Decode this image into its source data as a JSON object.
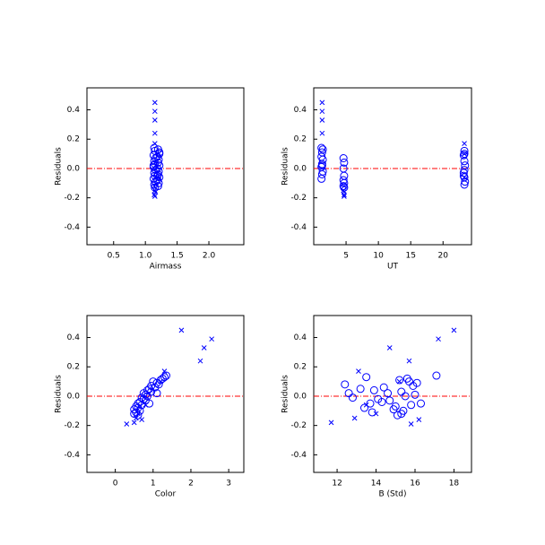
{
  "chart_data": [
    {
      "type": "scatter",
      "xlabel": "Airmass",
      "ylabel": "Residuals",
      "xlim": [
        0.08,
        2.55
      ],
      "ylim": [
        -0.52,
        0.55
      ],
      "xticks": [
        0.5,
        {
          "value": 1,
          "label": "1.0"
        },
        1.5,
        {
          "value": 2,
          "label": "2.0"
        }
      ],
      "yticks": [
        -0.4,
        -0.2,
        {
          "value": 0,
          "label": "0.0"
        },
        0.2,
        0.4
      ],
      "refline": {
        "value": 0,
        "color": "#ff0000"
      },
      "series": [
        {
          "marker": "circle",
          "color": "#0000ff",
          "x": [
            1.14,
            1.2,
            1.15,
            1.22,
            1.13,
            1.19,
            1.16,
            1.21,
            1.14,
            1.2,
            1.15,
            1.22,
            1.13,
            1.19,
            1.16,
            1.21,
            1.14,
            1.2,
            1.15,
            1.22,
            1.13,
            1.19,
            1.16,
            1.21,
            1.14,
            1.2,
            1.15,
            1.22,
            1.13,
            1.19
          ],
          "values": [
            0.14,
            0.13,
            0.12,
            0.11,
            0.09,
            0.08,
            0.07,
            0.06,
            0.05,
            0.04,
            0.03,
            0.02,
            0.01,
            0.0,
            -0.01,
            -0.02,
            -0.03,
            -0.04,
            -0.05,
            -0.06,
            -0.07,
            -0.08,
            -0.09,
            -0.1,
            -0.11,
            -0.12,
            -0.13,
            0.1,
            0.02,
            -0.05
          ]
        },
        {
          "marker": "x",
          "color": "#0000ff",
          "x": [
            1.15,
            1.15,
            1.15,
            1.15,
            1.15,
            1.15,
            1.14,
            1.16,
            1.15,
            1.14,
            1.2,
            1.2
          ],
          "values": [
            0.45,
            0.39,
            0.33,
            0.24,
            0.17,
            -0.19,
            -0.18,
            -0.16,
            -0.15,
            -0.12,
            0.1,
            -0.06
          ]
        }
      ]
    },
    {
      "type": "scatter",
      "xlabel": "UT",
      "ylabel": "Residuals",
      "xlim": [
        0,
        24.4
      ],
      "ylim": [
        -0.52,
        0.55
      ],
      "xticks": [
        5,
        10,
        15,
        20
      ],
      "yticks": [
        -0.4,
        -0.2,
        {
          "value": 0,
          "label": "0.0"
        },
        0.2,
        0.4
      ],
      "refline": {
        "value": 0,
        "color": "#ff0000"
      },
      "series": [
        {
          "marker": "circle",
          "color": "#0000ff",
          "x": [
            1.2,
            1.4,
            23.3,
            1.3,
            23.2,
            1.2,
            4.6,
            1.4,
            23.3,
            4.7,
            1.3,
            23.4,
            1.2,
            4.6,
            23.3,
            1.4,
            23.2,
            1.3,
            4.7,
            23.3,
            1.2,
            4.6,
            23.4,
            4.7,
            23.3,
            4.6,
            4.7,
            23.3,
            1.3,
            23.2
          ],
          "values": [
            0.14,
            0.13,
            0.12,
            0.11,
            0.09,
            0.08,
            0.07,
            0.06,
            0.05,
            0.04,
            0.03,
            0.02,
            0.01,
            0.0,
            -0.01,
            -0.02,
            -0.03,
            -0.04,
            -0.05,
            -0.06,
            -0.07,
            -0.08,
            -0.09,
            -0.1,
            -0.11,
            -0.12,
            -0.13,
            0.1,
            0.02,
            -0.05
          ]
        },
        {
          "marker": "x",
          "color": "#0000ff",
          "x": [
            1.3,
            1.3,
            1.3,
            1.3,
            23.3,
            4.7,
            4.7,
            4.7,
            4.6,
            4.7,
            23.3,
            23.3
          ],
          "values": [
            0.45,
            0.39,
            0.33,
            0.24,
            0.17,
            -0.19,
            -0.18,
            -0.16,
            -0.15,
            -0.12,
            0.1,
            -0.06
          ]
        }
      ]
    },
    {
      "type": "scatter",
      "xlabel": "Color",
      "ylabel": "Residuals",
      "xlim": [
        -0.75,
        3.4
      ],
      "ylim": [
        -0.52,
        0.55
      ],
      "xticks": [
        0,
        1,
        2,
        3
      ],
      "yticks": [
        -0.4,
        -0.2,
        {
          "value": 0,
          "label": "0.0"
        },
        0.2,
        0.4
      ],
      "refline": {
        "value": 0,
        "color": "#ff0000"
      },
      "series": [
        {
          "marker": "circle",
          "color": "#0000ff",
          "x": [
            1.35,
            1.3,
            1.25,
            1.2,
            1.1,
            1.15,
            0.95,
            1.05,
            0.9,
            0.85,
            0.95,
            0.75,
            0.8,
            0.85,
            0.7,
            0.75,
            0.8,
            0.65,
            0.6,
            0.7,
            0.55,
            0.6,
            0.5,
            0.65,
            0.55,
            0.5,
            0.6,
            1.0,
            1.1,
            0.9
          ],
          "values": [
            0.14,
            0.13,
            0.12,
            0.11,
            0.09,
            0.08,
            0.07,
            0.06,
            0.05,
            0.04,
            0.03,
            0.02,
            0.01,
            0.0,
            -0.01,
            -0.02,
            -0.03,
            -0.04,
            -0.05,
            -0.06,
            -0.07,
            -0.08,
            -0.09,
            -0.1,
            -0.11,
            -0.12,
            -0.13,
            0.1,
            0.02,
            -0.05
          ]
        },
        {
          "marker": "x",
          "color": "#0000ff",
          "x": [
            1.75,
            2.55,
            2.35,
            2.25,
            1.3,
            0.3,
            0.5,
            0.7,
            0.55,
            0.6,
            1.2,
            0.8
          ],
          "values": [
            0.45,
            0.39,
            0.33,
            0.24,
            0.17,
            -0.19,
            -0.18,
            -0.16,
            -0.15,
            -0.12,
            0.1,
            -0.06
          ]
        }
      ]
    },
    {
      "type": "scatter",
      "xlabel": "B (Std)",
      "ylabel": "Residuals",
      "xlim": [
        10.8,
        18.9
      ],
      "ylim": [
        -0.52,
        0.55
      ],
      "xticks": [
        12,
        14,
        16,
        18
      ],
      "yticks": [
        -0.4,
        -0.2,
        {
          "value": 0,
          "label": "0.0"
        },
        0.2,
        0.4
      ],
      "refline": {
        "value": 0,
        "color": "#ff0000"
      },
      "series": [
        {
          "marker": "circle",
          "color": "#0000ff",
          "x": [
            17.1,
            13.5,
            15.6,
            15.2,
            16.1,
            12.4,
            15.9,
            14.4,
            13.2,
            13.9,
            15.3,
            14.6,
            16.0,
            15.5,
            12.8,
            14.1,
            14.7,
            14.3,
            13.7,
            15.8,
            15.0,
            13.4,
            14.9,
            15.4,
            13.8,
            15.3,
            15.1,
            15.7,
            12.6,
            16.3
          ],
          "values": [
            0.14,
            0.13,
            0.12,
            0.11,
            0.09,
            0.08,
            0.07,
            0.06,
            0.05,
            0.04,
            0.03,
            0.02,
            0.01,
            0.0,
            -0.01,
            -0.02,
            -0.03,
            -0.04,
            -0.05,
            -0.06,
            -0.07,
            -0.08,
            -0.09,
            -0.1,
            -0.11,
            -0.12,
            -0.13,
            0.1,
            0.02,
            -0.05
          ]
        },
        {
          "marker": "x",
          "color": "#0000ff",
          "x": [
            18.0,
            17.2,
            14.7,
            15.7,
            13.1,
            15.8,
            11.7,
            16.2,
            12.9,
            14.0,
            15.2,
            13.5
          ],
          "values": [
            0.45,
            0.39,
            0.33,
            0.24,
            0.17,
            -0.19,
            -0.18,
            -0.16,
            -0.15,
            -0.12,
            0.1,
            -0.06
          ]
        }
      ]
    }
  ]
}
